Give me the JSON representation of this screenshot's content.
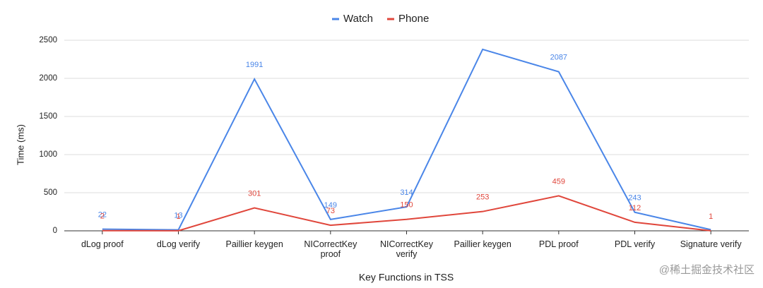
{
  "chart_data": {
    "type": "line",
    "x_label": "Key Functions in TSS",
    "y_label": "Time (ms)",
    "categories": [
      "dLog proof",
      "dLog verify",
      "Paillier keygen",
      "NICorrectKey proof",
      "NICorrectKey verify",
      "Paillier keygen",
      "PDL proof",
      "PDL verify",
      "Signature verify"
    ],
    "series": [
      {
        "name": "Watch",
        "color": "#4a86e8",
        "values": [
          22,
          13,
          1991,
          149,
          314,
          2380,
          2087,
          243,
          15
        ],
        "value_labels": [
          "22",
          "13",
          "1991",
          "149",
          "314",
          null,
          "2087",
          "243",
          null
        ]
      },
      {
        "name": "Phone",
        "color": "#e0463b",
        "values": [
          2,
          1,
          301,
          73,
          150,
          253,
          459,
          112,
          1
        ]
      }
    ],
    "ylim": [
      0,
      2500
    ],
    "yticks": [
      0,
      500,
      1000,
      1500,
      2000,
      2500
    ],
    "grid": true,
    "legend": "top",
    "watermark": "@稀土掘金技术社区"
  }
}
